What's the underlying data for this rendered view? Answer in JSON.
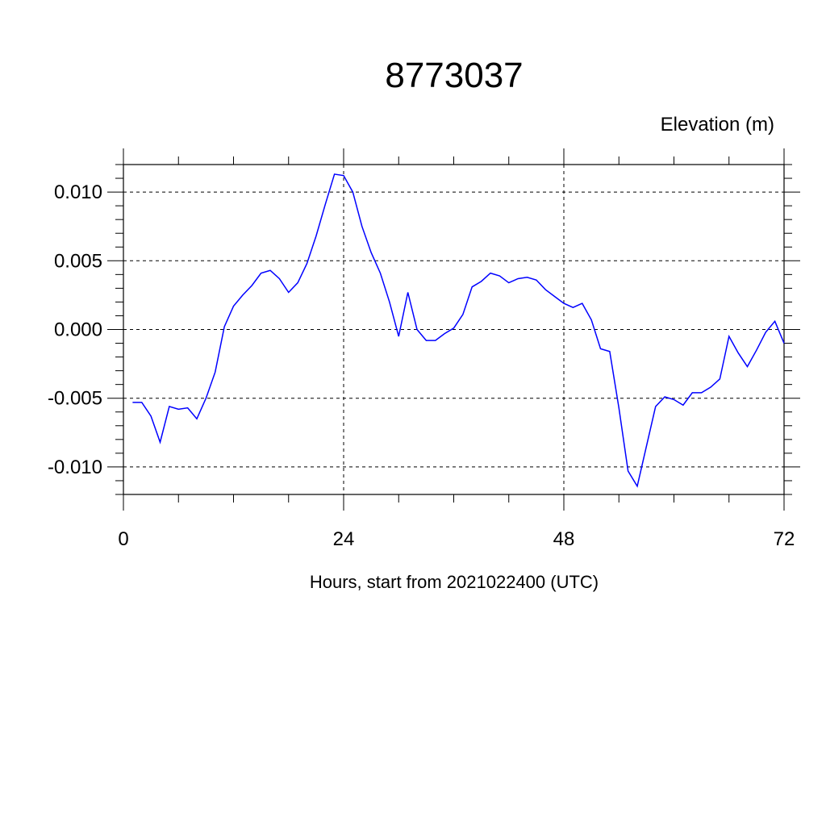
{
  "chart_data": {
    "type": "line",
    "title": "8773037",
    "ylabel": "Elevation (m)",
    "xlabel": "Hours, start from 2021022400 (UTC)",
    "xlim": [
      0,
      72
    ],
    "ylim": [
      -0.012,
      0.012
    ],
    "x_ticks": [
      0,
      24,
      48,
      72
    ],
    "x_tick_labels": [
      "0",
      "24",
      "48",
      "72"
    ],
    "y_ticks": [
      0.01,
      0.005,
      0.0,
      -0.005,
      -0.01
    ],
    "y_tick_labels": [
      "0.010",
      "0.005",
      "0.000",
      "-0.005",
      "-0.010"
    ],
    "grid": true,
    "series": [
      {
        "color": "#0000ff",
        "x": [
          1,
          2,
          3,
          4,
          5,
          6,
          7,
          8,
          9,
          10,
          11,
          12,
          13,
          14,
          15,
          16,
          17,
          18,
          19,
          20,
          21,
          22,
          23,
          24,
          25,
          26,
          27,
          28,
          29,
          30,
          31,
          32,
          33,
          34,
          35,
          36,
          37,
          38,
          39,
          40,
          41,
          42,
          43,
          44,
          45,
          46,
          47,
          48,
          49,
          50,
          51,
          52,
          53,
          54,
          55,
          56,
          57,
          58,
          59,
          60,
          61,
          62,
          63,
          64,
          65,
          66,
          67,
          68,
          69,
          70,
          71,
          72
        ],
        "values": [
          -0.0053,
          -0.0053,
          -0.0063,
          -0.0082,
          -0.0056,
          -0.0058,
          -0.0057,
          -0.0065,
          -0.005,
          -0.0031,
          0.0002,
          0.0017,
          0.0025,
          0.0032,
          0.0041,
          0.0043,
          0.0037,
          0.0027,
          0.0034,
          0.0048,
          0.0068,
          0.0091,
          0.0113,
          0.0112,
          0.01,
          0.0075,
          0.0056,
          0.0041,
          0.002,
          -0.0005,
          0.0027,
          0.0,
          -0.0008,
          -0.0008,
          -0.0003,
          0.0001,
          0.0011,
          0.0031,
          0.0035,
          0.0041,
          0.0039,
          0.0034,
          0.0037,
          0.0038,
          0.0036,
          0.0029,
          0.0024,
          0.0019,
          0.0016,
          0.0019,
          0.0007,
          -0.0014,
          -0.0016,
          -0.0057,
          -0.0103,
          -0.0114,
          -0.0085,
          -0.0056,
          -0.0049,
          -0.0051,
          -0.0055,
          -0.0046,
          -0.0046,
          -0.0042,
          -0.0036,
          -0.0005,
          -0.0017,
          -0.0027,
          -0.0015,
          -0.0002,
          0.0006,
          -0.001
        ]
      }
    ]
  }
}
